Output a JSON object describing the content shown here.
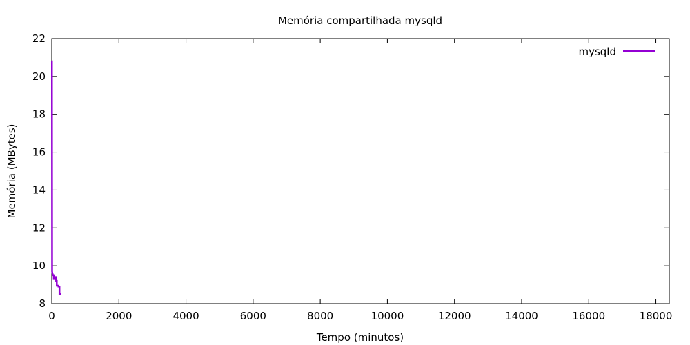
{
  "chart_data": {
    "type": "line",
    "title": "Memória compartilhada mysqld",
    "xlabel": "Tempo (minutos)",
    "ylabel": "Memória (MBytes)",
    "xlim": [
      0,
      18400
    ],
    "ylim": [
      8,
      22
    ],
    "xticks": [
      0,
      2000,
      4000,
      6000,
      8000,
      10000,
      12000,
      14000,
      16000,
      18000
    ],
    "yticks": [
      8,
      10,
      12,
      14,
      16,
      18,
      20,
      22
    ],
    "grid": false,
    "legend_position": "top-right",
    "series": [
      {
        "name": "mysqld",
        "color": "#9400d3",
        "points": [
          [
            0,
            20.8
          ],
          [
            5,
            20.8
          ],
          [
            10,
            9.7
          ],
          [
            20,
            9.6
          ],
          [
            40,
            9.5
          ],
          [
            60,
            9.5
          ],
          [
            60,
            9.3
          ],
          [
            110,
            9.3
          ],
          [
            110,
            9.4
          ],
          [
            130,
            9.4
          ],
          [
            130,
            9.2
          ],
          [
            150,
            9.2
          ],
          [
            150,
            8.95
          ],
          [
            200,
            8.95
          ],
          [
            200,
            8.9
          ],
          [
            230,
            8.9
          ],
          [
            230,
            8.5
          ],
          [
            270,
            8.5
          ]
        ]
      }
    ]
  }
}
